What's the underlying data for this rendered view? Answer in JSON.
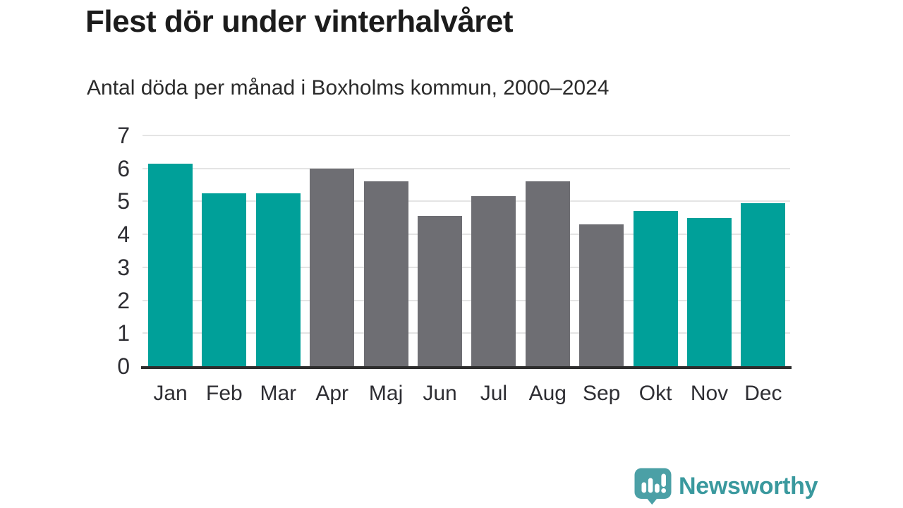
{
  "chart_data": {
    "type": "bar",
    "title": "Flest dör under vinterhalvåret",
    "subtitle": "Antal döda per månad i Boxholms kommun, 2000–2024",
    "categories": [
      "Jan",
      "Feb",
      "Mar",
      "Apr",
      "Maj",
      "Jun",
      "Jul",
      "Aug",
      "Sep",
      "Okt",
      "Nov",
      "Dec"
    ],
    "values": [
      6.15,
      5.25,
      5.25,
      6.0,
      5.6,
      4.55,
      5.15,
      5.6,
      4.3,
      4.7,
      4.5,
      4.95
    ],
    "bar_color_keys": [
      "teal",
      "teal",
      "teal",
      "gray",
      "gray",
      "gray",
      "gray",
      "gray",
      "gray",
      "teal",
      "teal",
      "teal"
    ],
    "colors": {
      "teal": "#00a099",
      "gray": "#6e6e73",
      "gridline": "#e4e4e4",
      "axis": "#2d2d2d",
      "tick_text": "#2e2e33"
    },
    "xlabel": "",
    "ylabel": "",
    "ylim": [
      0,
      7
    ],
    "yticks": [
      0,
      1,
      2,
      3,
      4,
      5,
      6,
      7
    ],
    "grid": true,
    "legend": false
  },
  "brand": {
    "name": "Newsworthy",
    "text_color": "#3a999e",
    "icon": "bar-chart-speech-bubble-icon",
    "icon_color": "#4ba0a6"
  }
}
